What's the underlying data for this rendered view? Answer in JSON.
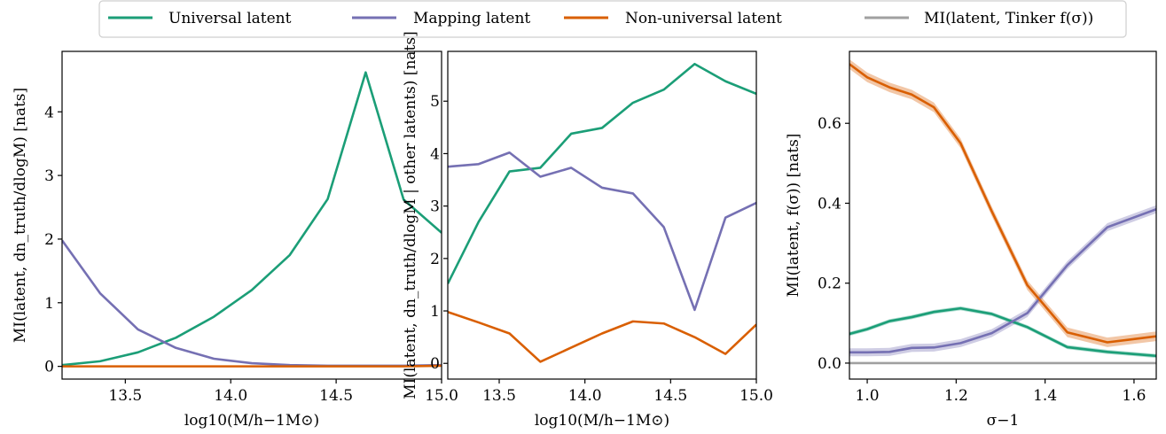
{
  "colors": {
    "universal": "#1b9e77",
    "mapping": "#7570b3",
    "nonuniversal": "#d95f02",
    "tinker": "#a0a0a0"
  },
  "legend": [
    {
      "key": "universal",
      "label": "Universal latent"
    },
    {
      "key": "mapping",
      "label": "Mapping latent"
    },
    {
      "key": "nonuniversal",
      "label": "Non-universal latent"
    },
    {
      "key": "tinker",
      "label": "MI(latent, Tinker f(σ))"
    }
  ],
  "chart_data": [
    {
      "type": "line",
      "xlabel": "log10(M/h−1M⊙)",
      "ylabel": "MI(latent, dn_truth/dlogM) [nats]",
      "xlim": [
        13.2,
        15.0
      ],
      "ylim": [
        -0.2,
        4.95
      ],
      "xticks": [
        13.5,
        14.0,
        14.5,
        15.0
      ],
      "xtick_labels": [
        "13.5",
        "14.0",
        "14.5",
        "15.0"
      ],
      "yticks": [
        0,
        1,
        2,
        3,
        4
      ],
      "ytick_labels": [
        "0",
        "1",
        "2",
        "3",
        "4"
      ],
      "x": [
        13.2,
        13.38,
        13.56,
        13.74,
        13.92,
        14.1,
        14.28,
        14.46,
        14.64,
        14.82,
        15.0
      ],
      "series": [
        {
          "key": "universal",
          "values": [
            0.02,
            0.08,
            0.22,
            0.45,
            0.78,
            1.2,
            1.75,
            2.63,
            4.62,
            2.62,
            2.1
          ]
        },
        {
          "key": "mapping",
          "values": [
            1.98,
            1.15,
            0.58,
            0.29,
            0.12,
            0.05,
            0.02,
            0.01,
            0.01,
            0.01,
            0.02
          ]
        },
        {
          "key": "nonuniversal",
          "values": [
            0.0,
            0.0,
            0.0,
            0.0,
            0.0,
            0.0,
            0.0,
            0.0,
            0.0,
            0.0,
            0.01
          ]
        }
      ]
    },
    {
      "type": "line",
      "xlabel": "log10(M/h−1M⊙)",
      "ylabel": "MI(latent, dn_truth/dlogM | other latents) [nats]",
      "xlim": [
        13.2,
        15.0
      ],
      "ylim": [
        -0.3,
        5.95
      ],
      "xticks": [
        13.5,
        14.0,
        14.5,
        15.0
      ],
      "xtick_labels": [
        "13.5",
        "14.0",
        "14.5",
        "15.0"
      ],
      "yticks": [
        0,
        1,
        2,
        3,
        4,
        5
      ],
      "ytick_labels": [
        "0",
        "1",
        "2",
        "3",
        "4",
        "5"
      ],
      "x": [
        13.2,
        13.38,
        13.56,
        13.74,
        13.92,
        14.1,
        14.28,
        14.46,
        14.64,
        14.82,
        15.0
      ],
      "series": [
        {
          "key": "universal",
          "values": [
            1.52,
            2.7,
            3.66,
            3.73,
            4.38,
            4.49,
            4.97,
            5.22,
            5.71,
            5.38,
            5.14
          ]
        },
        {
          "key": "mapping",
          "values": [
            3.75,
            3.8,
            4.02,
            3.56,
            3.73,
            3.35,
            3.24,
            2.6,
            1.02,
            2.78,
            3.06
          ]
        },
        {
          "key": "nonuniversal",
          "values": [
            0.98,
            0.78,
            0.57,
            0.03,
            0.3,
            0.57,
            0.8,
            0.76,
            0.5,
            0.18,
            0.74
          ]
        }
      ]
    },
    {
      "type": "line",
      "xlabel": "σ−1",
      "ylabel": "MI(latent, f(σ)) [nats]",
      "xlim": [
        0.96,
        1.65
      ],
      "ylim": [
        -0.04,
        0.78
      ],
      "xticks": [
        1.0,
        1.2,
        1.4,
        1.6
      ],
      "xtick_labels": [
        "1.0",
        "1.2",
        "1.4",
        "1.6"
      ],
      "yticks": [
        0.0,
        0.2,
        0.4,
        0.6
      ],
      "ytick_labels": [
        "0.0",
        "0.2",
        "0.4",
        "0.6"
      ],
      "x": [
        0.96,
        1.0,
        1.05,
        1.1,
        1.15,
        1.21,
        1.28,
        1.36,
        1.45,
        1.54,
        1.65
      ],
      "series": [
        {
          "key": "universal",
          "values": [
            0.073,
            0.085,
            0.105,
            0.115,
            0.128,
            0.137,
            0.123,
            0.09,
            0.04,
            0.028,
            0.018
          ],
          "band": 0.005
        },
        {
          "key": "mapping",
          "values": [
            0.027,
            0.027,
            0.028,
            0.038,
            0.039,
            0.05,
            0.075,
            0.125,
            0.245,
            0.34,
            0.385
          ],
          "band": 0.01
        },
        {
          "key": "nonuniversal",
          "values": [
            0.748,
            0.715,
            0.69,
            0.672,
            0.64,
            0.55,
            0.38,
            0.195,
            0.077,
            0.052,
            0.067
          ],
          "band": 0.012
        },
        {
          "key": "tinker",
          "values": [
            0.0,
            0.0,
            0.0,
            0.0,
            0.0,
            0.0,
            0.0,
            0.0,
            0.0,
            0.0,
            0.0
          ]
        }
      ]
    }
  ]
}
